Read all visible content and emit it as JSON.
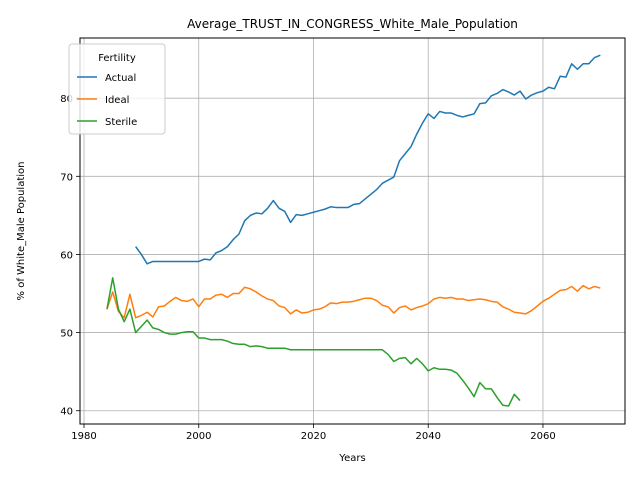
{
  "chart_data": {
    "type": "line",
    "title": "Average_TRUST_IN_CONGRESS_White_Male_Population",
    "xlabel": "Years",
    "ylabel": "% of White_Male Population",
    "xlim": [
      1979.3,
      2074.3
    ],
    "ylim": [
      38.3,
      87.7
    ],
    "xticks": [
      1980,
      2000,
      2020,
      2040,
      2060
    ],
    "yticks": [
      40,
      50,
      60,
      70,
      80
    ],
    "grid": true,
    "legend": {
      "title": "Fertility",
      "placement": "top-left"
    },
    "series": [
      {
        "name": "Actual",
        "color": "#1f77b4",
        "points": [
          [
            1989,
            61.0
          ],
          [
            1990,
            60.0
          ],
          [
            1991,
            58.8
          ],
          [
            1992,
            59.1
          ],
          [
            1993,
            59.1
          ],
          [
            1995,
            59.1
          ],
          [
            1997,
            59.1
          ],
          [
            1999,
            59.1
          ],
          [
            2000,
            59.1
          ],
          [
            2001,
            59.4
          ],
          [
            2002,
            59.3
          ],
          [
            2003,
            60.2
          ],
          [
            2004,
            60.5
          ],
          [
            2005,
            61.0
          ],
          [
            2006,
            61.9
          ],
          [
            2007,
            62.6
          ],
          [
            2008,
            64.3
          ],
          [
            2009,
            65.0
          ],
          [
            2010,
            65.3
          ],
          [
            2011,
            65.2
          ],
          [
            2012,
            65.9
          ],
          [
            2013,
            66.9
          ],
          [
            2014,
            65.9
          ],
          [
            2015,
            65.5
          ],
          [
            2016,
            64.1
          ],
          [
            2017,
            65.1
          ],
          [
            2018,
            65.0
          ],
          [
            2019,
            65.2
          ],
          [
            2020,
            65.4
          ],
          [
            2021,
            65.6
          ],
          [
            2022,
            65.8
          ],
          [
            2023,
            66.1
          ],
          [
            2024,
            66.0
          ],
          [
            2025,
            66.0
          ],
          [
            2026,
            66.0
          ],
          [
            2027,
            66.4
          ],
          [
            2028,
            66.5
          ],
          [
            2029,
            67.1
          ],
          [
            2030,
            67.7
          ],
          [
            2031,
            68.3
          ],
          [
            2032,
            69.1
          ],
          [
            2033,
            69.5
          ],
          [
            2034,
            69.9
          ],
          [
            2035,
            72.0
          ],
          [
            2036,
            72.9
          ],
          [
            2037,
            73.8
          ],
          [
            2038,
            75.4
          ],
          [
            2039,
            76.8
          ],
          [
            2040,
            78.0
          ],
          [
            2041,
            77.4
          ],
          [
            2042,
            78.3
          ],
          [
            2043,
            78.1
          ],
          [
            2044,
            78.1
          ],
          [
            2045,
            77.8
          ],
          [
            2046,
            77.6
          ],
          [
            2047,
            77.8
          ],
          [
            2048,
            78.0
          ],
          [
            2049,
            79.3
          ],
          [
            2050,
            79.4
          ],
          [
            2051,
            80.3
          ],
          [
            2052,
            80.6
          ],
          [
            2053,
            81.1
          ],
          [
            2054,
            80.8
          ],
          [
            2055,
            80.4
          ],
          [
            2056,
            80.9
          ],
          [
            2057,
            79.9
          ],
          [
            2058,
            80.4
          ],
          [
            2059,
            80.7
          ],
          [
            2060,
            80.9
          ],
          [
            2061,
            81.4
          ],
          [
            2062,
            81.2
          ],
          [
            2063,
            82.8
          ],
          [
            2064,
            82.7
          ],
          [
            2065,
            84.4
          ],
          [
            2066,
            83.7
          ],
          [
            2067,
            84.4
          ],
          [
            2068,
            84.4
          ],
          [
            2069,
            85.2
          ],
          [
            2070,
            85.5
          ]
        ]
      },
      {
        "name": "Ideal",
        "color": "#ff7f0e",
        "points": [
          [
            1984,
            53.0
          ],
          [
            1985,
            55.2
          ],
          [
            1986,
            52.7
          ],
          [
            1987,
            51.9
          ],
          [
            1988,
            54.9
          ],
          [
            1989,
            51.9
          ],
          [
            1990,
            52.2
          ],
          [
            1991,
            52.6
          ],
          [
            1992,
            52.0
          ],
          [
            1993,
            53.3
          ],
          [
            1994,
            53.4
          ],
          [
            1995,
            54.0
          ],
          [
            1996,
            54.5
          ],
          [
            1997,
            54.1
          ],
          [
            1998,
            54.0
          ],
          [
            1999,
            54.3
          ],
          [
            2000,
            53.3
          ],
          [
            2001,
            54.3
          ],
          [
            2002,
            54.3
          ],
          [
            2003,
            54.8
          ],
          [
            2004,
            54.9
          ],
          [
            2005,
            54.5
          ],
          [
            2006,
            55.0
          ],
          [
            2007,
            55.0
          ],
          [
            2008,
            55.8
          ],
          [
            2009,
            55.6
          ],
          [
            2010,
            55.2
          ],
          [
            2011,
            54.7
          ],
          [
            2012,
            54.3
          ],
          [
            2013,
            54.1
          ],
          [
            2014,
            53.4
          ],
          [
            2015,
            53.2
          ],
          [
            2016,
            52.4
          ],
          [
            2017,
            52.9
          ],
          [
            2018,
            52.5
          ],
          [
            2019,
            52.6
          ],
          [
            2020,
            52.9
          ],
          [
            2021,
            53.0
          ],
          [
            2022,
            53.3
          ],
          [
            2023,
            53.8
          ],
          [
            2024,
            53.7
          ],
          [
            2025,
            53.9
          ],
          [
            2026,
            53.9
          ],
          [
            2027,
            54.0
          ],
          [
            2028,
            54.2
          ],
          [
            2029,
            54.4
          ],
          [
            2030,
            54.4
          ],
          [
            2031,
            54.1
          ],
          [
            2032,
            53.5
          ],
          [
            2033,
            53.3
          ],
          [
            2034,
            52.5
          ],
          [
            2035,
            53.2
          ],
          [
            2036,
            53.4
          ],
          [
            2037,
            52.9
          ],
          [
            2038,
            53.2
          ],
          [
            2039,
            53.4
          ],
          [
            2040,
            53.7
          ],
          [
            2041,
            54.3
          ],
          [
            2042,
            54.5
          ],
          [
            2043,
            54.4
          ],
          [
            2044,
            54.5
          ],
          [
            2045,
            54.3
          ],
          [
            2046,
            54.3
          ],
          [
            2047,
            54.1
          ],
          [
            2048,
            54.2
          ],
          [
            2049,
            54.3
          ],
          [
            2050,
            54.2
          ],
          [
            2051,
            54.0
          ],
          [
            2052,
            53.9
          ],
          [
            2053,
            53.3
          ],
          [
            2054,
            53.0
          ],
          [
            2055,
            52.6
          ],
          [
            2056,
            52.5
          ],
          [
            2057,
            52.4
          ],
          [
            2058,
            52.8
          ],
          [
            2059,
            53.4
          ],
          [
            2060,
            54.0
          ],
          [
            2061,
            54.4
          ],
          [
            2062,
            54.9
          ],
          [
            2063,
            55.4
          ],
          [
            2064,
            55.5
          ],
          [
            2065,
            55.9
          ],
          [
            2066,
            55.3
          ],
          [
            2067,
            56.0
          ],
          [
            2068,
            55.6
          ],
          [
            2069,
            55.9
          ],
          [
            2070,
            55.7
          ]
        ]
      },
      {
        "name": "Sterile",
        "color": "#2ca02c",
        "points": [
          [
            1984,
            53.0
          ],
          [
            1985,
            57.0
          ],
          [
            1986,
            53.0
          ],
          [
            1987,
            51.4
          ],
          [
            1988,
            53.0
          ],
          [
            1989,
            50.0
          ],
          [
            1990,
            50.8
          ],
          [
            1991,
            51.6
          ],
          [
            1992,
            50.6
          ],
          [
            1993,
            50.4
          ],
          [
            1994,
            50.0
          ],
          [
            1995,
            49.8
          ],
          [
            1996,
            49.8
          ],
          [
            1997,
            50.0
          ],
          [
            1998,
            50.1
          ],
          [
            1999,
            50.1
          ],
          [
            2000,
            49.3
          ],
          [
            2001,
            49.3
          ],
          [
            2002,
            49.1
          ],
          [
            2003,
            49.1
          ],
          [
            2004,
            49.1
          ],
          [
            2005,
            48.9
          ],
          [
            2006,
            48.6
          ],
          [
            2007,
            48.5
          ],
          [
            2008,
            48.5
          ],
          [
            2009,
            48.2
          ],
          [
            2010,
            48.3
          ],
          [
            2011,
            48.2
          ],
          [
            2012,
            48.0
          ],
          [
            2013,
            48.0
          ],
          [
            2014,
            48.0
          ],
          [
            2015,
            48.0
          ],
          [
            2016,
            47.8
          ],
          [
            2017,
            47.8
          ],
          [
            2018,
            47.8
          ],
          [
            2020,
            47.8
          ],
          [
            2022,
            47.8
          ],
          [
            2024,
            47.8
          ],
          [
            2026,
            47.8
          ],
          [
            2028,
            47.8
          ],
          [
            2030,
            47.8
          ],
          [
            2032,
            47.8
          ],
          [
            2033,
            47.2
          ],
          [
            2034,
            46.3
          ],
          [
            2035,
            46.7
          ],
          [
            2036,
            46.8
          ],
          [
            2037,
            46.0
          ],
          [
            2038,
            46.7
          ],
          [
            2039,
            46.0
          ],
          [
            2040,
            45.1
          ],
          [
            2041,
            45.5
          ],
          [
            2042,
            45.3
          ],
          [
            2043,
            45.3
          ],
          [
            2044,
            45.2
          ],
          [
            2045,
            44.8
          ],
          [
            2046,
            43.9
          ],
          [
            2047,
            42.9
          ],
          [
            2048,
            41.8
          ],
          [
            2049,
            43.6
          ],
          [
            2050,
            42.8
          ],
          [
            2051,
            42.8
          ],
          [
            2052,
            41.7
          ],
          [
            2053,
            40.7
          ],
          [
            2054,
            40.6
          ],
          [
            2055,
            42.1
          ],
          [
            2056,
            41.3
          ]
        ]
      }
    ]
  }
}
